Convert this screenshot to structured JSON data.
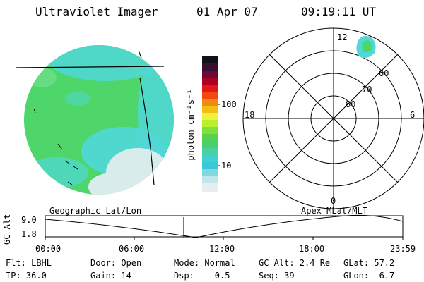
{
  "header": {
    "title": "Ultraviolet Imager",
    "date": "01 Apr 07",
    "time": "09:19:11 UT"
  },
  "colorbar": {
    "label": "photon cm⁻²s⁻¹",
    "ticks": [
      "100",
      "10"
    ]
  },
  "polar_plot": {
    "clock_labels": [
      "12",
      "18",
      "6",
      "0"
    ],
    "lat_labels": [
      "60",
      "70",
      "80"
    ]
  },
  "altitude_panel": {
    "left_label": "Geographic Lat/Lon",
    "right_label": "Apex MLat/MLT",
    "axis_label": "GC Alt",
    "y_ticks": [
      "9.0",
      "1.8"
    ],
    "x_ticks": [
      "00:00",
      "06:00",
      "12:00",
      "18:00",
      "23:59"
    ],
    "marker_time_hours": 9.32
  },
  "footer": {
    "row1": [
      {
        "label": "Flt: LBHL"
      },
      {
        "label": "Door: Open"
      },
      {
        "label": "Mode: Normal"
      },
      {
        "label": "GC Alt: 2.4 Re"
      },
      {
        "label": "GLat: 57.2"
      }
    ],
    "row2": [
      {
        "label": "IP: 36.0"
      },
      {
        "label": "Gain: 14"
      },
      {
        "label": "Dsp:    0.5"
      },
      {
        "label": "Seq: 39"
      },
      {
        "label": "GLon:  6.7"
      }
    ]
  },
  "colors": {
    "earth_main": "#4fd66a",
    "earth_cyan": "#4fd8d8",
    "earth_pale": "#d8ecec",
    "marker": "#d40000"
  }
}
